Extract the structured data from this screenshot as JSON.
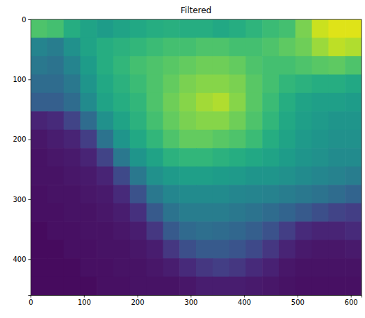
{
  "chart_data": {
    "type": "heatmap",
    "title": "Filtered",
    "color": "viridis",
    "xlim": [
      0,
      620
    ],
    "ylim": [
      460,
      0
    ],
    "xticks": [
      0,
      100,
      200,
      300,
      400,
      500,
      600
    ],
    "yticks": [
      0,
      100,
      200,
      300,
      400
    ],
    "zlim": [
      0,
      1
    ],
    "z": [
      [
        0.72,
        0.7,
        0.62,
        0.58,
        0.55,
        0.58,
        0.6,
        0.62,
        0.63,
        0.62,
        0.62,
        0.6,
        0.62,
        0.65,
        0.68,
        0.7,
        0.8,
        0.92,
        0.95,
        0.95
      ],
      [
        0.45,
        0.42,
        0.5,
        0.58,
        0.62,
        0.64,
        0.66,
        0.68,
        0.7,
        0.7,
        0.72,
        0.72,
        0.7,
        0.7,
        0.72,
        0.75,
        0.78,
        0.85,
        0.9,
        0.88
      ],
      [
        0.4,
        0.38,
        0.45,
        0.55,
        0.62,
        0.66,
        0.7,
        0.72,
        0.74,
        0.76,
        0.78,
        0.78,
        0.76,
        0.72,
        0.7,
        0.7,
        0.72,
        0.74,
        0.75,
        0.72
      ],
      [
        0.35,
        0.35,
        0.4,
        0.52,
        0.6,
        0.64,
        0.68,
        0.72,
        0.76,
        0.8,
        0.82,
        0.82,
        0.8,
        0.74,
        0.7,
        0.66,
        0.64,
        0.62,
        0.62,
        0.6
      ],
      [
        0.3,
        0.3,
        0.35,
        0.48,
        0.58,
        0.62,
        0.66,
        0.72,
        0.78,
        0.82,
        0.86,
        0.88,
        0.82,
        0.74,
        0.68,
        0.62,
        0.58,
        0.56,
        0.56,
        0.55
      ],
      [
        0.1,
        0.12,
        0.2,
        0.35,
        0.5,
        0.58,
        0.64,
        0.7,
        0.76,
        0.8,
        0.82,
        0.82,
        0.78,
        0.72,
        0.66,
        0.6,
        0.56,
        0.54,
        0.52,
        0.52
      ],
      [
        0.06,
        0.08,
        0.1,
        0.18,
        0.38,
        0.52,
        0.6,
        0.66,
        0.72,
        0.76,
        0.76,
        0.74,
        0.72,
        0.68,
        0.62,
        0.58,
        0.54,
        0.52,
        0.5,
        0.5
      ],
      [
        0.05,
        0.06,
        0.07,
        0.1,
        0.2,
        0.4,
        0.52,
        0.58,
        0.64,
        0.66,
        0.66,
        0.64,
        0.62,
        0.6,
        0.58,
        0.55,
        0.52,
        0.5,
        0.48,
        0.48
      ],
      [
        0.05,
        0.05,
        0.06,
        0.07,
        0.1,
        0.22,
        0.4,
        0.5,
        0.54,
        0.56,
        0.56,
        0.55,
        0.54,
        0.52,
        0.52,
        0.5,
        0.48,
        0.46,
        0.44,
        0.42
      ],
      [
        0.04,
        0.05,
        0.05,
        0.06,
        0.07,
        0.12,
        0.25,
        0.4,
        0.46,
        0.48,
        0.48,
        0.48,
        0.46,
        0.45,
        0.44,
        0.42,
        0.4,
        0.38,
        0.35,
        0.32
      ],
      [
        0.04,
        0.04,
        0.05,
        0.05,
        0.06,
        0.08,
        0.14,
        0.28,
        0.38,
        0.42,
        0.42,
        0.42,
        0.4,
        0.38,
        0.35,
        0.32,
        0.28,
        0.24,
        0.2,
        0.18
      ],
      [
        0.03,
        0.04,
        0.04,
        0.05,
        0.05,
        0.06,
        0.08,
        0.16,
        0.28,
        0.34,
        0.36,
        0.35,
        0.33,
        0.3,
        0.25,
        0.18,
        0.12,
        0.1,
        0.1,
        0.12
      ],
      [
        0.03,
        0.03,
        0.04,
        0.04,
        0.05,
        0.05,
        0.06,
        0.08,
        0.16,
        0.24,
        0.28,
        0.28,
        0.26,
        0.22,
        0.16,
        0.1,
        0.07,
        0.06,
        0.06,
        0.07
      ],
      [
        0.03,
        0.03,
        0.03,
        0.04,
        0.04,
        0.05,
        0.05,
        0.06,
        0.08,
        0.12,
        0.16,
        0.18,
        0.16,
        0.12,
        0.09,
        0.06,
        0.05,
        0.05,
        0.05,
        0.05
      ],
      [
        0.03,
        0.03,
        0.03,
        0.03,
        0.04,
        0.04,
        0.05,
        0.05,
        0.05,
        0.06,
        0.08,
        0.08,
        0.08,
        0.07,
        0.06,
        0.05,
        0.04,
        0.04,
        0.04,
        0.04
      ]
    ]
  }
}
